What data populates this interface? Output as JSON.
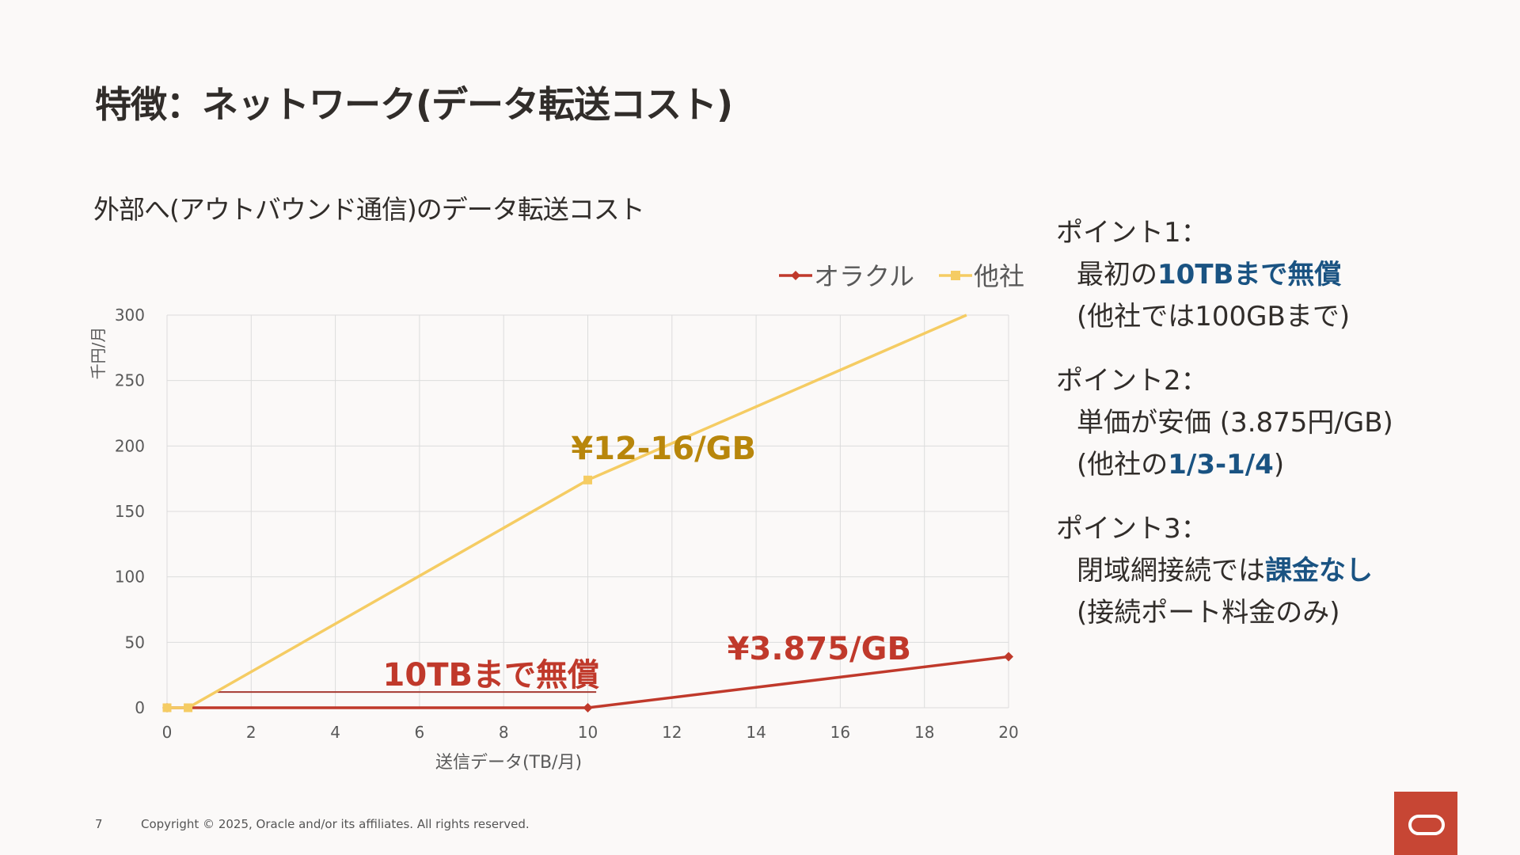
{
  "slide": {
    "title": "特徴：ネットワーク(データ転送コスト)",
    "chart_subtitle": "外部へ(アウトバウンド通信)のデータ転送コスト",
    "page_number": "7",
    "copyright": "Copyright © 2025, Oracle and/or its affiliates. All rights reserved."
  },
  "points": [
    {
      "heading": "ポイント1：",
      "line1_pre": "最初の",
      "line1_hl": "10TBまで無償",
      "line1_post": "",
      "line2_pre": "(他社では100GBまで)",
      "line2_hl": "",
      "line2_post": ""
    },
    {
      "heading": "ポイント2：",
      "line1_pre": "単価が安価 (3.875円/GB)",
      "line1_hl": "",
      "line1_post": "",
      "line2_pre": "(他社の",
      "line2_hl": "1/3-1/4",
      "line2_post": ")"
    },
    {
      "heading": "ポイント3：",
      "line1_pre": "閉域網接続では",
      "line1_hl": "課金なし",
      "line1_post": "",
      "line2_pre": "(接続ポート料金のみ)",
      "line2_hl": "",
      "line2_post": ""
    }
  ],
  "colors": {
    "oracle": "#c0392b",
    "other": "#f5cc63",
    "highlight": "#1a5382",
    "brand": "#c74634"
  },
  "chart_data": {
    "type": "line",
    "xlabel": "送信データ(TB/月)",
    "ylabel": "千円/月",
    "xlim": [
      0,
      20
    ],
    "ylim": [
      0,
      300
    ],
    "x_ticks": [
      0,
      2,
      4,
      6,
      8,
      10,
      12,
      14,
      16,
      18,
      20
    ],
    "y_ticks": [
      0,
      50,
      100,
      150,
      200,
      250,
      300
    ],
    "grid": true,
    "legend_position": "top-right",
    "series": [
      {
        "name": "オラクル",
        "color": "#c0392b",
        "marker": "diamond",
        "x": [
          0,
          10,
          20
        ],
        "y": [
          0,
          0,
          39
        ],
        "markers_at": [
          0,
          10,
          20
        ]
      },
      {
        "name": "他社",
        "color": "#f5cc63",
        "marker": "square",
        "x": [
          0,
          0.5,
          10,
          19
        ],
        "y": [
          0,
          0,
          174,
          300
        ],
        "markers_at": [
          0,
          0.5,
          10
        ]
      }
    ],
    "annotations": [
      {
        "text": "¥12-16/GB",
        "color": "#b8860b",
        "x": 11.8,
        "y": 190
      },
      {
        "text": "¥3.875/GB",
        "color": "#c0392b",
        "x": 15.5,
        "y": 37
      },
      {
        "text": "10TBまで無償",
        "color": "#c0392b",
        "x": 7.7,
        "y": 17
      }
    ]
  }
}
